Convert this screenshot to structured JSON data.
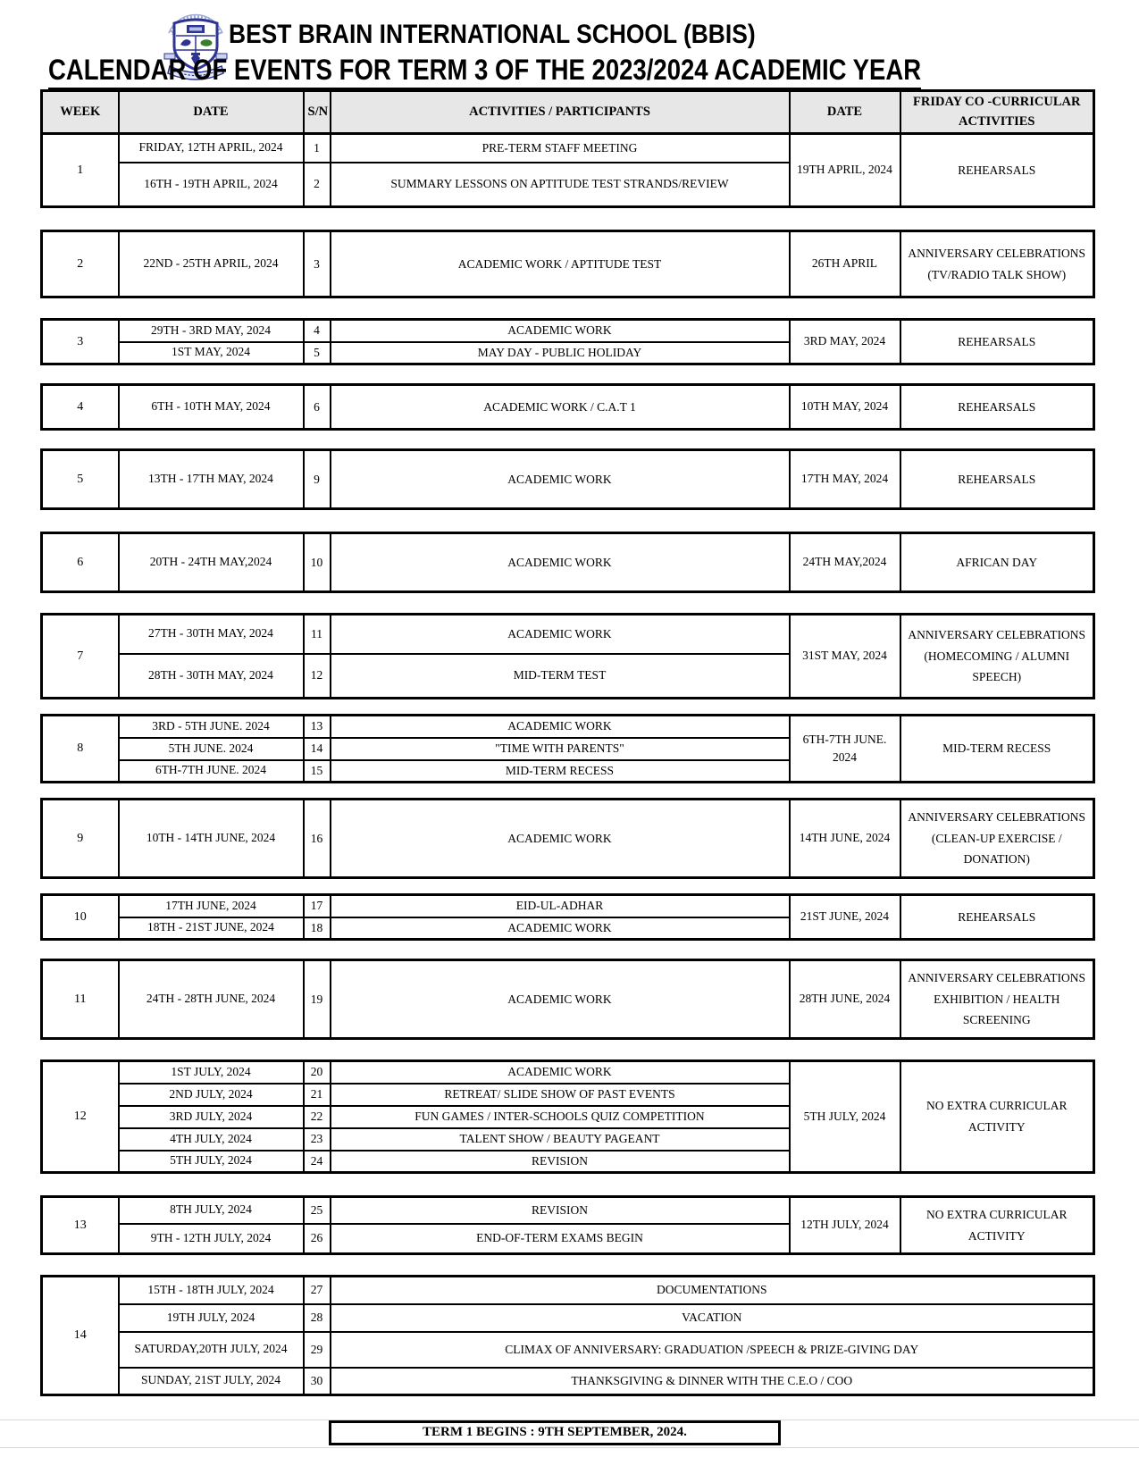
{
  "header": {
    "school_name": "BEST BRAIN INTERNATIONAL SCHOOL (BBIS)",
    "title": "CALENDAR OF EVENTS FOR TERM 3 OF THE 2023/2024 ACADEMIC YEAR",
    "logo": "school-crest",
    "logo_colors": {
      "navy": "#2e3491",
      "light_blue": "#8f9ad0",
      "green": "#3a7d2c"
    }
  },
  "table": {
    "columns": [
      "WEEK",
      "DATE",
      "S/N",
      "ACTIVITIES / PARTICIPANTS",
      "DATE",
      "FRIDAY CO -CURRICULAR ACTIVITIES"
    ],
    "weeks": [
      {
        "week": "1",
        "rows": [
          {
            "date": "FRIDAY, 12TH APRIL, 2024",
            "sn": "1",
            "activity": "PRE-TERM STAFF MEETING"
          },
          {
            "date": "16TH - 19TH APRIL, 2024",
            "sn": "2",
            "activity": "SUMMARY LESSONS ON APTITUDE TEST STRANDS/REVIEW"
          }
        ],
        "friday_date": "19TH APRIL, 2024",
        "friday_activity": "REHEARSALS"
      },
      {
        "week": "2",
        "rows": [
          {
            "date": "22ND - 25TH APRIL, 2024",
            "sn": "3",
            "activity": "ACADEMIC WORK / APTITUDE TEST"
          }
        ],
        "friday_date": "26TH APRIL",
        "friday_activity": "ANNIVERSARY CELEBRATIONS (TV/RADIO TALK SHOW)"
      },
      {
        "week": "3",
        "rows": [
          {
            "date": "29TH - 3RD MAY, 2024",
            "sn": "4",
            "activity": "ACADEMIC WORK"
          },
          {
            "date": "1ST MAY, 2024",
            "sn": "5",
            "activity": "MAY DAY - PUBLIC HOLIDAY"
          }
        ],
        "friday_date": "3RD MAY, 2024",
        "friday_activity": "REHEARSALS"
      },
      {
        "week": "4",
        "rows": [
          {
            "date": "6TH - 10TH MAY, 2024",
            "sn": "6",
            "activity": "ACADEMIC WORK / C.A.T 1"
          }
        ],
        "friday_date": "10TH MAY, 2024",
        "friday_activity": "REHEARSALS"
      },
      {
        "week": "5",
        "rows": [
          {
            "date": "13TH - 17TH MAY, 2024",
            "sn": "9",
            "activity": "ACADEMIC WORK"
          }
        ],
        "friday_date": "17TH MAY, 2024",
        "friday_activity": "REHEARSALS"
      },
      {
        "week": "6",
        "rows": [
          {
            "date": "20TH - 24TH MAY,2024",
            "sn": "10",
            "activity": "ACADEMIC WORK"
          }
        ],
        "friday_date": "24TH MAY,2024",
        "friday_activity": "AFRICAN DAY"
      },
      {
        "week": "7",
        "rows": [
          {
            "date": "27TH - 30TH MAY, 2024",
            "sn": "11",
            "activity": "ACADEMIC WORK"
          },
          {
            "date": "28TH - 30TH MAY, 2024",
            "sn": "12",
            "activity": "MID-TERM TEST"
          }
        ],
        "friday_date": "31ST MAY, 2024",
        "friday_activity": "ANNIVERSARY CELEBRATIONS (HOMECOMING / ALUMNI SPEECH)"
      },
      {
        "week": "8",
        "rows": [
          {
            "date": "3RD - 5TH JUNE. 2024",
            "sn": "13",
            "activity": "ACADEMIC WORK"
          },
          {
            "date": "5TH JUNE. 2024",
            "sn": "14",
            "activity": "\"TIME WITH PARENTS\""
          },
          {
            "date": "6TH-7TH JUNE. 2024",
            "sn": "15",
            "activity": "MID-TERM RECESS"
          }
        ],
        "friday_date": "6TH-7TH JUNE. 2024",
        "friday_activity": "MID-TERM RECESS"
      },
      {
        "week": "9",
        "rows": [
          {
            "date": "10TH - 14TH JUNE, 2024",
            "sn": "16",
            "activity": "ACADEMIC WORK"
          }
        ],
        "friday_date": "14TH JUNE, 2024",
        "friday_activity": "ANNIVERSARY CELEBRATIONS (CLEAN-UP EXERCISE / DONATION)"
      },
      {
        "week": "10",
        "rows": [
          {
            "date": "17TH JUNE, 2024",
            "sn": "17",
            "activity": "EID-UL-ADHAR"
          },
          {
            "date": "18TH - 21ST JUNE, 2024",
            "sn": "18",
            "activity": "ACADEMIC WORK"
          }
        ],
        "friday_date": "21ST JUNE, 2024",
        "friday_activity": "REHEARSALS"
      },
      {
        "week": "11",
        "rows": [
          {
            "date": "24TH - 28TH JUNE, 2024",
            "sn": "19",
            "activity": "ACADEMIC WORK"
          }
        ],
        "friday_date": "28TH JUNE, 2024",
        "friday_activity": "ANNIVERSARY CELEBRATIONS EXHIBITION / HEALTH SCREENING"
      },
      {
        "week": "12",
        "rows": [
          {
            "date": "1ST JULY, 2024",
            "sn": "20",
            "activity": "ACADEMIC WORK"
          },
          {
            "date": "2ND JULY, 2024",
            "sn": "21",
            "activity": "RETREAT/ SLIDE SHOW OF PAST EVENTS"
          },
          {
            "date": "3RD JULY, 2024",
            "sn": "22",
            "activity": "FUN GAMES / INTER-SCHOOLS QUIZ COMPETITION"
          },
          {
            "date": "4TH JULY, 2024",
            "sn": "23",
            "activity": "TALENT SHOW / BEAUTY PAGEANT"
          },
          {
            "date": "5TH JULY, 2024",
            "sn": "24",
            "activity": "REVISION"
          }
        ],
        "friday_date": "5TH JULY, 2024",
        "friday_activity": "NO EXTRA CURRICULAR ACTIVITY"
      },
      {
        "week": "13",
        "rows": [
          {
            "date": "8TH JULY, 2024",
            "sn": "25",
            "activity": "REVISION"
          },
          {
            "date": "9TH - 12TH JULY, 2024",
            "sn": "26",
            "activity": "END-OF-TERM EXAMS BEGIN"
          }
        ],
        "friday_date": "12TH JULY, 2024",
        "friday_activity": "NO EXTRA CURRICULAR ACTIVITY"
      },
      {
        "week": "14",
        "full_span": true,
        "rows": [
          {
            "date": "15TH - 18TH JULY, 2024",
            "sn": "27",
            "activity": "DOCUMENTATIONS"
          },
          {
            "date": "19TH JULY, 2024",
            "sn": "28",
            "activity": "VACATION"
          },
          {
            "date": "SATURDAY,20TH JULY, 2024",
            "sn": "29",
            "activity": "CLIMAX OF ANNIVERSARY: GRADUATION /SPEECH & PRIZE-GIVING DAY"
          },
          {
            "date": "SUNDAY, 21ST JULY, 2024",
            "sn": "30",
            "activity": "THANKSGIVING & DINNER WITH THE C.E.O / COO"
          }
        ]
      }
    ]
  },
  "footer": {
    "note": "TERM 1 BEGINS : 9TH SEPTEMBER, 2024."
  }
}
